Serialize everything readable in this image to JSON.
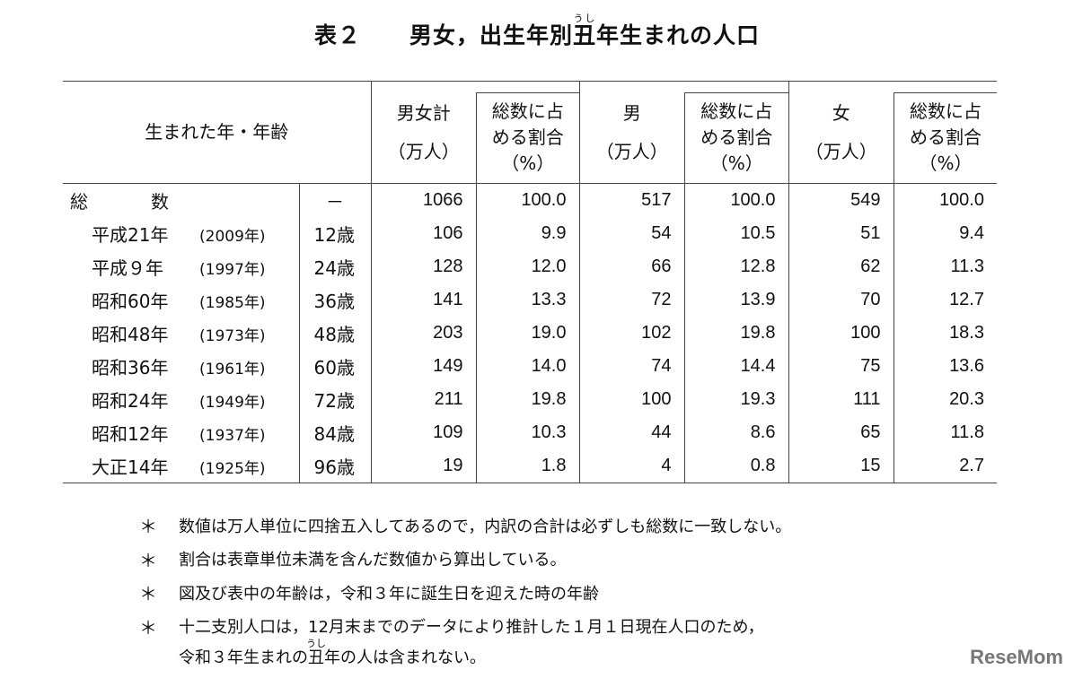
{
  "title": {
    "label": "表２",
    "text_before": "男女，出生年別",
    "ruby_base": "丑",
    "ruby_text": "うし",
    "text_after": "年生まれの人口"
  },
  "header": {
    "row_label": "生まれた年・年齢",
    "total": "男女計",
    "male": "男",
    "female": "女",
    "share": "総数に占める割合",
    "share_line1": "総数に占",
    "share_line2": "める割合",
    "unit_count": "（万人）",
    "unit_pct": "（%）"
  },
  "total_row": {
    "label_1": "総",
    "label_2": "数",
    "age": "－",
    "total": "1066",
    "total_pct": "100.0",
    "male": "517",
    "male_pct": "100.0",
    "female": "549",
    "female_pct": "100.0"
  },
  "rows": [
    {
      "era": "平成21年",
      "year": "(2009年)",
      "age": "12歳",
      "total": "106",
      "total_pct": "9.9",
      "male": "54",
      "male_pct": "10.5",
      "female": "51",
      "female_pct": "9.4"
    },
    {
      "era": "平成９年",
      "year": "(1997年)",
      "age": "24歳",
      "total": "128",
      "total_pct": "12.0",
      "male": "66",
      "male_pct": "12.8",
      "female": "62",
      "female_pct": "11.3"
    },
    {
      "era": "昭和60年",
      "year": "(1985年)",
      "age": "36歳",
      "total": "141",
      "total_pct": "13.3",
      "male": "72",
      "male_pct": "13.9",
      "female": "70",
      "female_pct": "12.7"
    },
    {
      "era": "昭和48年",
      "year": "(1973年)",
      "age": "48歳",
      "total": "203",
      "total_pct": "19.0",
      "male": "102",
      "male_pct": "19.8",
      "female": "100",
      "female_pct": "18.3"
    },
    {
      "era": "昭和36年",
      "year": "(1961年)",
      "age": "60歳",
      "total": "149",
      "total_pct": "14.0",
      "male": "74",
      "male_pct": "14.4",
      "female": "75",
      "female_pct": "13.6"
    },
    {
      "era": "昭和24年",
      "year": "(1949年)",
      "age": "72歳",
      "total": "211",
      "total_pct": "19.8",
      "male": "100",
      "male_pct": "19.3",
      "female": "111",
      "female_pct": "20.3"
    },
    {
      "era": "昭和12年",
      "year": "(1937年)",
      "age": "84歳",
      "total": "109",
      "total_pct": "10.3",
      "male": "44",
      "male_pct": "8.6",
      "female": "65",
      "female_pct": "11.8"
    },
    {
      "era": "大正14年",
      "year": "(1925年)",
      "age": "96歳",
      "total": "19",
      "total_pct": "1.8",
      "male": "4",
      "male_pct": "0.8",
      "female": "15",
      "female_pct": "2.7"
    }
  ],
  "notes": [
    "数値は万人単位に四捨五入してあるので，内訳の合計は必ずしも総数に一致しない。",
    "割合は表章単位未満を含んだ数値から算出している。",
    "図及び表中の年齢は，令和３年に誕生日を迎えた時の年齢",
    "十二支別人口は，12月末までのデータにより推計した１月１日現在人口のため，"
  ],
  "note_cont": {
    "before": "令和３年生まれの",
    "ruby_base": "丑",
    "ruby_text": "うし",
    "after": "年の人は含まれない。"
  },
  "note_marker": "＊",
  "logo": "ReseMom"
}
